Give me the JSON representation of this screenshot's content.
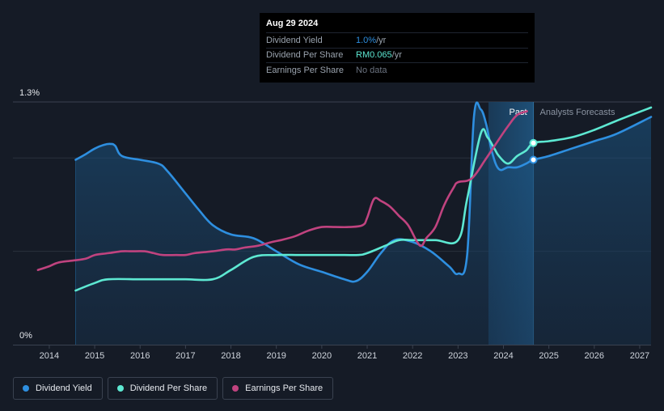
{
  "chart_data": {
    "type": "line",
    "title": "",
    "xlabel": "",
    "ylabel": "",
    "ylim": [
      0,
      1.3
    ],
    "y_tick_labels": [
      {
        "value": 1.3,
        "label": "1.3%"
      },
      {
        "value": 0,
        "label": "0%"
      }
    ],
    "x_tick_labels": [
      "2014",
      "2015",
      "2016",
      "2017",
      "2018",
      "2019",
      "2020",
      "2021",
      "2022",
      "2023",
      "2024",
      "2025",
      "2026",
      "2027"
    ],
    "x_tick_values": [
      2014,
      2015,
      2016,
      2017,
      2018,
      2019,
      2020,
      2021,
      2022,
      2023,
      2024,
      2025,
      2026,
      2027
    ],
    "xlim": [
      2013.2,
      2027.25
    ],
    "past_band": {
      "start": 2023.67,
      "end": 2024.66,
      "label": "Past"
    },
    "forecast_label": "Analysts Forecasts",
    "series": [
      {
        "name": "Dividend Yield",
        "color": "#2e8fe0",
        "fill": true,
        "x": [
          2014.58,
          2014.8,
          2015.0,
          2015.2,
          2015.35,
          2015.45,
          2015.6,
          2016.0,
          2016.4,
          2016.6,
          2017.0,
          2017.3,
          2017.6,
          2018.0,
          2018.5,
          2019.0,
          2019.5,
          2020.0,
          2020.5,
          2020.75,
          2021.0,
          2021.3,
          2021.6,
          2022.0,
          2022.4,
          2022.8,
          2023.0,
          2023.2,
          2023.35,
          2023.5,
          2023.62,
          2023.75,
          2023.9,
          2024.1,
          2024.3,
          2024.5,
          2024.66,
          2025.0,
          2025.5,
          2026.0,
          2026.5,
          2027.25
        ],
        "values": [
          0.99,
          1.02,
          1.05,
          1.07,
          1.075,
          1.065,
          1.01,
          0.99,
          0.97,
          0.93,
          0.81,
          0.72,
          0.64,
          0.59,
          0.57,
          0.5,
          0.43,
          0.39,
          0.35,
          0.34,
          0.39,
          0.49,
          0.56,
          0.55,
          0.5,
          0.42,
          0.38,
          0.48,
          1.22,
          1.26,
          1.18,
          1.03,
          0.94,
          0.95,
          0.95,
          0.97,
          0.99,
          1.01,
          1.05,
          1.09,
          1.13,
          1.22
        ]
      },
      {
        "name": "Dividend Per Share",
        "color": "#5de8d2",
        "fill": false,
        "x": [
          2014.58,
          2015.0,
          2015.3,
          2016.0,
          2016.5,
          2017.0,
          2017.6,
          2018.0,
          2018.5,
          2019.0,
          2019.5,
          2020.0,
          2020.5,
          2020.8,
          2021.0,
          2021.4,
          2021.7,
          2022.0,
          2022.5,
          2023.0,
          2023.2,
          2023.5,
          2023.65,
          2023.8,
          2023.9,
          2024.1,
          2024.3,
          2024.5,
          2024.66,
          2025.0,
          2025.5,
          2026.0,
          2026.5,
          2027.25
        ],
        "values": [
          0.29,
          0.33,
          0.35,
          0.35,
          0.35,
          0.35,
          0.35,
          0.4,
          0.47,
          0.48,
          0.48,
          0.48,
          0.48,
          0.48,
          0.49,
          0.53,
          0.56,
          0.56,
          0.56,
          0.56,
          0.78,
          1.13,
          1.11,
          1.05,
          1.01,
          0.97,
          1.01,
          1.04,
          1.08,
          1.09,
          1.11,
          1.15,
          1.2,
          1.27
        ]
      },
      {
        "name": "Earnings Per Share",
        "color": "#c0437f",
        "fill": false,
        "x": [
          2013.75,
          2014.0,
          2014.2,
          2014.5,
          2014.8,
          2015.0,
          2015.3,
          2015.6,
          2015.8,
          2016.1,
          2016.3,
          2016.5,
          2016.8,
          2017.0,
          2017.2,
          2017.6,
          2017.9,
          2018.1,
          2018.3,
          2018.6,
          2018.9,
          2019.1,
          2019.4,
          2019.7,
          2020.0,
          2020.3,
          2020.6,
          2020.9,
          2021.0,
          2021.15,
          2021.3,
          2021.5,
          2021.7,
          2021.9,
          2022.1,
          2022.2,
          2022.3,
          2022.5,
          2022.7,
          2022.9,
          2023.0,
          2023.3,
          2023.6,
          2023.9,
          2024.1,
          2024.3,
          2024.52
        ],
        "values": [
          0.4,
          0.42,
          0.44,
          0.45,
          0.46,
          0.48,
          0.49,
          0.5,
          0.5,
          0.5,
          0.49,
          0.48,
          0.48,
          0.48,
          0.49,
          0.5,
          0.51,
          0.51,
          0.52,
          0.53,
          0.55,
          0.56,
          0.58,
          0.61,
          0.63,
          0.63,
          0.63,
          0.64,
          0.68,
          0.78,
          0.77,
          0.74,
          0.69,
          0.64,
          0.55,
          0.53,
          0.57,
          0.63,
          0.75,
          0.84,
          0.87,
          0.89,
          0.99,
          1.1,
          1.17,
          1.23,
          1.25
        ]
      }
    ],
    "tooltip": {
      "date": "Aug 29 2024",
      "rows": [
        {
          "label": "Dividend Yield",
          "value": "1.0%",
          "unit": " /yr",
          "color": "#2e8fe0"
        },
        {
          "label": "Dividend Per Share",
          "value": "RM0.065",
          "unit": " /yr",
          "color": "#5de8d2"
        },
        {
          "label": "Earnings Per Share",
          "value": "No data",
          "unit": "",
          "color": "#6b7380"
        }
      ]
    },
    "markers": [
      {
        "series": "Dividend Yield",
        "x": 2024.66,
        "y": 0.99
      },
      {
        "series": "Dividend Per Share",
        "x": 2024.66,
        "y": 1.08
      }
    ]
  },
  "legend": [
    {
      "label": "Dividend Yield",
      "color": "#2e8fe0"
    },
    {
      "label": "Dividend Per Share",
      "color": "#5de8d2"
    },
    {
      "label": "Earnings Per Share",
      "color": "#c0437f"
    }
  ]
}
